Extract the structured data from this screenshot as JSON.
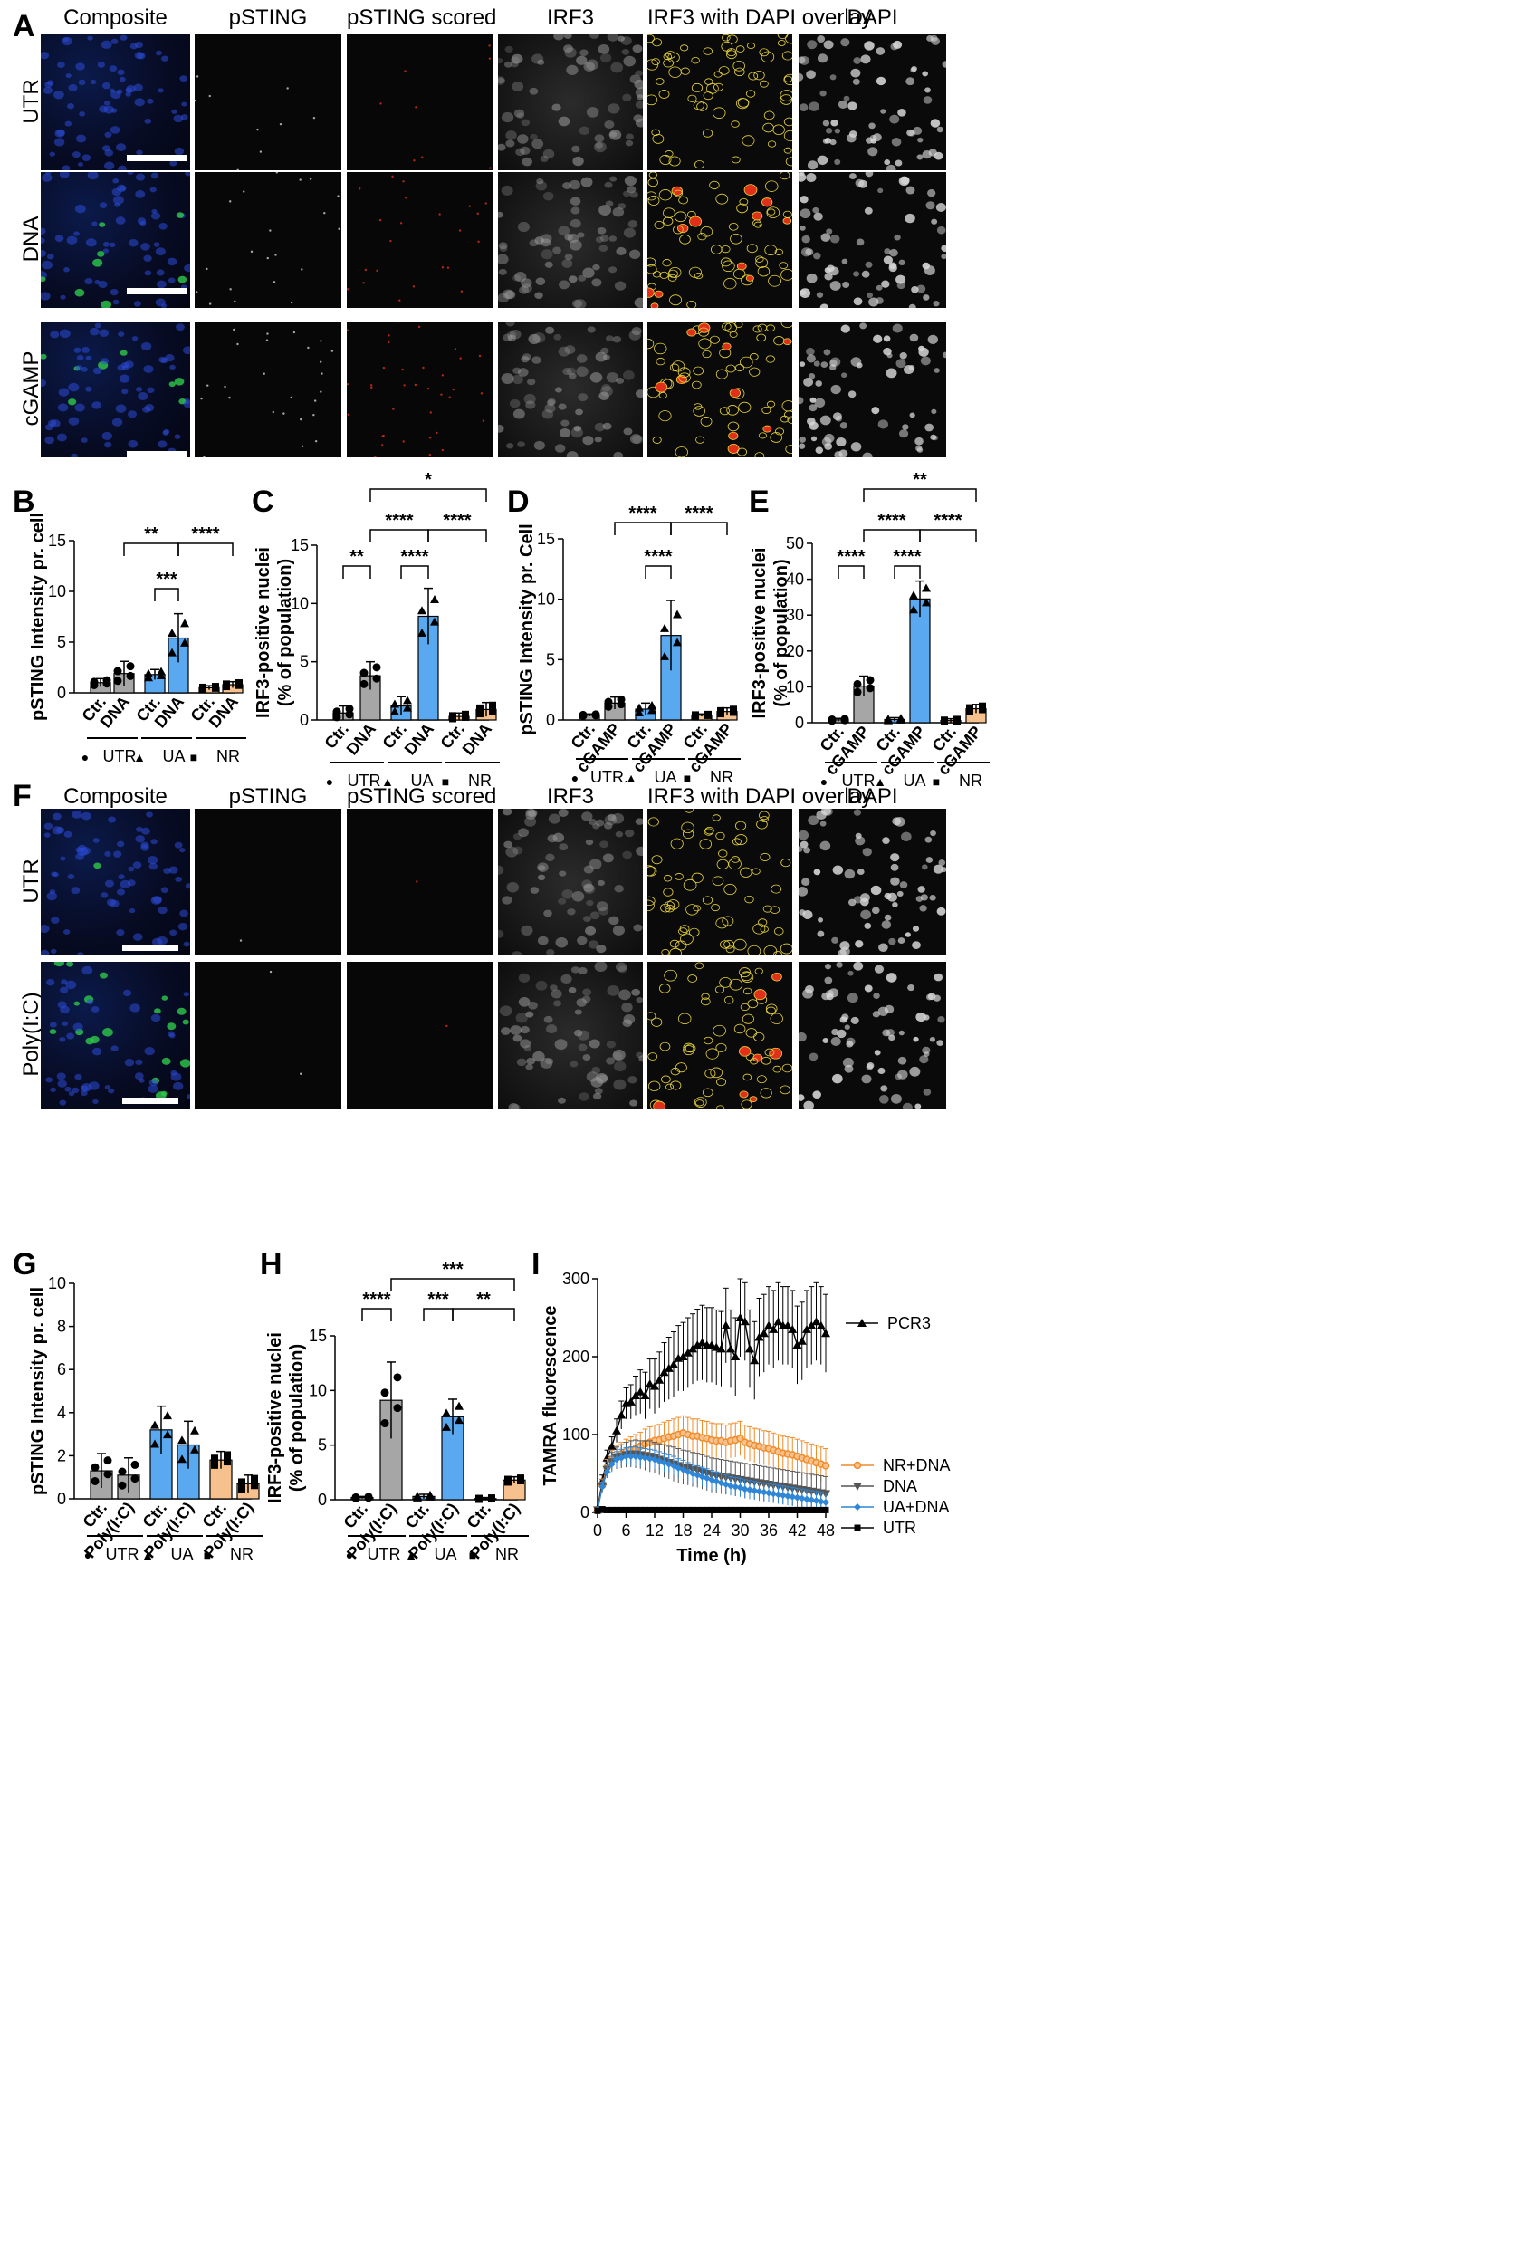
{
  "panel_labels": {
    "A": "A",
    "B": "B",
    "C": "C",
    "D": "D",
    "E": "E",
    "F": "F",
    "G": "G",
    "H": "H",
    "I": "I"
  },
  "panelA": {
    "columns": [
      "Composite",
      "pSTING",
      "pSTING scored",
      "IRF3",
      "IRF3 with DAPI overlay",
      "DAPI"
    ],
    "rows": [
      "UTR",
      "DNA",
      "cGAMP"
    ]
  },
  "panelF": {
    "columns": [
      "Composite",
      "pSTING",
      "pSTING scored",
      "IRF3",
      "IRF3 with DAPI overlay",
      "DAPI"
    ],
    "rows": [
      "UTR",
      "Poly(I:C)"
    ]
  },
  "colors": {
    "gray": "#a6a6a6",
    "blue": "#5aa9f0",
    "orange": "#f6c18c",
    "overlay_outline": "#e6d23a",
    "overlay_fill": "#e0301a",
    "nuclei_blue": "#2b4bd6",
    "nuclei_green": "#2ec94a"
  },
  "chart_data": [
    {
      "id": "B",
      "type": "bar",
      "ylabel": "pSTING Intensity pr. cell",
      "ylim": [
        0,
        15
      ],
      "yticks": [
        "0",
        "5",
        "10",
        "15"
      ],
      "categories": [
        "Ctr.",
        "DNA",
        "Ctr.",
        "DNA",
        "Ctr.",
        "DNA"
      ],
      "groups": [
        {
          "label": "UTR",
          "marker": "●"
        },
        {
          "label": "UA",
          "marker": "▲"
        },
        {
          "label": "NR",
          "marker": "■"
        }
      ],
      "values": [
        1.0,
        1.9,
        1.8,
        5.4,
        0.5,
        0.8
      ],
      "errors": [
        0.4,
        1.2,
        0.5,
        2.4,
        0.2,
        0.3
      ],
      "bar_colors": [
        "gray",
        "gray",
        "blue",
        "blue",
        "orange",
        "orange"
      ],
      "significance": [
        {
          "from": 2,
          "to": 3,
          "label": "***"
        },
        {
          "from": 1,
          "to": 3,
          "label": "**"
        },
        {
          "from": 3,
          "to": 5,
          "label": "****"
        }
      ]
    },
    {
      "id": "C",
      "type": "bar",
      "ylabel": "IRF3-positive nuclei\n(% of population)",
      "ylim": [
        0,
        15
      ],
      "yticks": [
        "0",
        "5",
        "10",
        "15"
      ],
      "categories": [
        "Ctr.",
        "DNA",
        "Ctr.",
        "DNA",
        "Ctr.",
        "DNA"
      ],
      "groups": [
        {
          "label": "UTR",
          "marker": "●"
        },
        {
          "label": "UA",
          "marker": "▲"
        },
        {
          "label": "NR",
          "marker": "■"
        }
      ],
      "values": [
        0.6,
        3.8,
        1.2,
        8.9,
        0.3,
        0.9
      ],
      "errors": [
        0.6,
        1.2,
        0.8,
        2.4,
        0.3,
        0.6
      ],
      "bar_colors": [
        "gray",
        "gray",
        "blue",
        "blue",
        "orange",
        "orange"
      ],
      "significance": [
        {
          "from": 0,
          "to": 1,
          "label": "**"
        },
        {
          "from": 2,
          "to": 3,
          "label": "****"
        },
        {
          "from": 1,
          "to": 3,
          "label": "****"
        },
        {
          "from": 3,
          "to": 5,
          "label": "****"
        },
        {
          "from": 1,
          "to": 5,
          "label": "*"
        }
      ]
    },
    {
      "id": "D",
      "type": "bar",
      "ylabel": "pSTING Intensity pr. Cell",
      "ylim": [
        0,
        15
      ],
      "yticks": [
        "0",
        "5",
        "10",
        "15"
      ],
      "categories": [
        "Ctr.",
        "cGAMP",
        "Ctr.",
        "cGAMP",
        "Ctr.",
        "cGAMP"
      ],
      "groups": [
        {
          "label": "UTR.",
          "marker": "●"
        },
        {
          "label": "UA",
          "marker": "▲"
        },
        {
          "label": "NR",
          "marker": "■"
        }
      ],
      "values": [
        0.4,
        1.4,
        0.9,
        7.0,
        0.4,
        0.7
      ],
      "errors": [
        0.1,
        0.5,
        0.5,
        2.9,
        0.1,
        0.3
      ],
      "bar_colors": [
        "gray",
        "gray",
        "blue",
        "blue",
        "orange",
        "orange"
      ],
      "significance": [
        {
          "from": 2,
          "to": 3,
          "label": "****"
        },
        {
          "from": 1,
          "to": 3,
          "label": "****"
        },
        {
          "from": 3,
          "to": 5,
          "label": "****"
        }
      ]
    },
    {
      "id": "E",
      "type": "bar",
      "ylabel": "IRF3-positive nuclei\n(% of population)",
      "ylim": [
        0,
        50
      ],
      "yticks": [
        "0",
        "10",
        "20",
        "30",
        "40",
        "50"
      ],
      "categories": [
        "Ctr.",
        "cGAMP",
        "Ctr.",
        "cGAMP",
        "Ctr.",
        "cGAMP"
      ],
      "groups": [
        {
          "label": "UTR",
          "marker": "●"
        },
        {
          "label": "UA",
          "marker": "▲"
        },
        {
          "label": "NR",
          "marker": "■"
        }
      ],
      "values": [
        0.8,
        10.2,
        0.9,
        34.5,
        0.6,
        3.9
      ],
      "errors": [
        0.4,
        2.8,
        0.5,
        5.0,
        0.5,
        1.2
      ],
      "bar_colors": [
        "gray",
        "gray",
        "blue",
        "blue",
        "orange",
        "orange"
      ],
      "significance": [
        {
          "from": 0,
          "to": 1,
          "label": "****"
        },
        {
          "from": 2,
          "to": 3,
          "label": "****"
        },
        {
          "from": 1,
          "to": 3,
          "label": "****"
        },
        {
          "from": 3,
          "to": 5,
          "label": "****"
        },
        {
          "from": 1,
          "to": 5,
          "label": "**"
        }
      ]
    },
    {
      "id": "G",
      "type": "bar",
      "ylabel": "pSTING Intensity pr. cell",
      "ylim": [
        0,
        10
      ],
      "yticks": [
        "0",
        "2",
        "4",
        "6",
        "8",
        "10"
      ],
      "categories": [
        "Ctr.",
        "Poly(I:C)",
        "Ctr.",
        "Poly(I:C)",
        "Ctr.",
        "Poly(I:C)"
      ],
      "groups": [
        {
          "label": "UTR",
          "marker": "●"
        },
        {
          "label": "UA",
          "marker": "▲"
        },
        {
          "label": "NR",
          "marker": "■"
        }
      ],
      "values": [
        1.3,
        1.1,
        3.2,
        2.5,
        1.8,
        0.7
      ],
      "errors": [
        0.8,
        0.8,
        1.1,
        1.1,
        0.4,
        0.4
      ],
      "bar_colors": [
        "gray",
        "gray",
        "blue",
        "blue",
        "orange",
        "orange"
      ],
      "significance": []
    },
    {
      "id": "H",
      "type": "bar",
      "ylabel": "IRF3-positive nuclei\n(% of population)",
      "ylim": [
        0,
        15
      ],
      "yticks": [
        "0",
        "5",
        "10",
        "15"
      ],
      "categories": [
        "Ctr.",
        "Poly(I:C)",
        "Ctr.",
        "Poly(I:C)",
        "Ctr.",
        "Poly(I:C)"
      ],
      "groups": [
        {
          "label": "UTR",
          "marker": "●"
        },
        {
          "label": "UA",
          "marker": "▲"
        },
        {
          "label": "NR",
          "marker": "■"
        }
      ],
      "values": [
        0.2,
        9.1,
        0.3,
        7.6,
        0.1,
        1.8
      ],
      "errors": [
        0.1,
        3.5,
        0.2,
        1.6,
        0.1,
        0.3
      ],
      "bar_colors": [
        "gray",
        "gray",
        "blue",
        "blue",
        "orange",
        "orange"
      ],
      "significance": [
        {
          "from": 0,
          "to": 1,
          "label": "****"
        },
        {
          "from": 2,
          "to": 3,
          "label": "***"
        },
        {
          "from": 3,
          "to": 5,
          "label": "**"
        },
        {
          "from": 1,
          "to": 5,
          "label": "***"
        }
      ]
    },
    {
      "id": "I",
      "type": "line",
      "xlabel": "Time (h)",
      "ylabel": "TAMRA fluorescence",
      "xlim": [
        0,
        48
      ],
      "ylim": [
        0,
        300
      ],
      "xticks": [
        "0",
        "6",
        "12",
        "18",
        "24",
        "30",
        "36",
        "42",
        "48"
      ],
      "yticks": [
        "0",
        "100",
        "200",
        "300"
      ],
      "x": [
        0,
        1,
        2,
        3,
        4,
        5,
        6,
        7,
        8,
        9,
        10,
        11,
        12,
        13,
        14,
        15,
        16,
        17,
        18,
        19,
        20,
        21,
        22,
        23,
        24,
        25,
        26,
        27,
        28,
        29,
        30,
        31,
        32,
        33,
        34,
        35,
        36,
        37,
        38,
        39,
        40,
        41,
        42,
        43,
        44,
        45,
        46,
        47,
        48
      ],
      "series": [
        {
          "name": "PCR3",
          "marker": "triangle-up",
          "color": "#000000",
          "values": [
            5,
            40,
            70,
            85,
            105,
            125,
            140,
            142,
            150,
            155,
            150,
            165,
            162,
            170,
            180,
            185,
            190,
            198,
            200,
            205,
            210,
            215,
            218,
            215,
            215,
            212,
            210,
            240,
            210,
            200,
            250,
            245,
            210,
            195,
            225,
            230,
            240,
            235,
            245,
            240,
            240,
            235,
            215,
            220,
            235,
            240,
            245,
            240,
            230
          ],
          "errors": [
            2,
            8,
            10,
            12,
            15,
            18,
            20,
            22,
            25,
            28,
            30,
            32,
            35,
            36,
            38,
            40,
            42,
            42,
            44,
            45,
            45,
            46,
            48,
            48,
            48,
            48,
            48,
            48,
            50,
            50,
            50,
            50,
            50,
            50,
            50,
            50,
            50,
            50,
            50,
            50,
            50,
            50,
            50,
            50,
            50,
            50,
            50,
            50,
            50
          ]
        },
        {
          "name": "NR+DNA",
          "marker": "circle",
          "color": "#f08c2a",
          "values": [
            3,
            35,
            58,
            68,
            72,
            75,
            78,
            80,
            82,
            85,
            88,
            90,
            92,
            93,
            95,
            97,
            98,
            100,
            102,
            100,
            98,
            98,
            96,
            95,
            93,
            92,
            92,
            90,
            92,
            93,
            95,
            90,
            88,
            86,
            85,
            83,
            82,
            80,
            78,
            76,
            75,
            74,
            72,
            70,
            68,
            66,
            64,
            62,
            60
          ],
          "errors": [
            1,
            8,
            10,
            12,
            14,
            15,
            16,
            17,
            18,
            18,
            19,
            20,
            20,
            20,
            21,
            21,
            22,
            22,
            22,
            22,
            22,
            22,
            22,
            22,
            22,
            22,
            22,
            22,
            22,
            22,
            22,
            22,
            22,
            22,
            22,
            22,
            22,
            22,
            22,
            22,
            22,
            22,
            22,
            22,
            22,
            22,
            22,
            22,
            22
          ]
        },
        {
          "name": "DNA",
          "marker": "triangle-down",
          "color": "#555555",
          "values": [
            3,
            34,
            55,
            65,
            70,
            72,
            74,
            75,
            75,
            74,
            73,
            72,
            70,
            68,
            66,
            64,
            62,
            60,
            58,
            57,
            55,
            54,
            52,
            50,
            48,
            47,
            46,
            45,
            44,
            43,
            42,
            41,
            40,
            39,
            38,
            37,
            36,
            35,
            34,
            33,
            32,
            31,
            30,
            29,
            28,
            27,
            26,
            25,
            24
          ],
          "errors": [
            1,
            8,
            10,
            12,
            14,
            15,
            16,
            17,
            18,
            18,
            19,
            20,
            20,
            20,
            21,
            21,
            22,
            22,
            22,
            22,
            22,
            22,
            22,
            22,
            22,
            22,
            22,
            22,
            22,
            22,
            22,
            22,
            22,
            22,
            22,
            22,
            22,
            22,
            22,
            22,
            22,
            22,
            22,
            22,
            22,
            22,
            22,
            22,
            22
          ]
        },
        {
          "name": "UA+DNA",
          "marker": "diamond",
          "color": "#2f86d6",
          "values": [
            3,
            33,
            52,
            62,
            68,
            70,
            72,
            72,
            72,
            71,
            70,
            69,
            68,
            66,
            64,
            62,
            60,
            57,
            55,
            52,
            50,
            48,
            46,
            44,
            42,
            40,
            38,
            36,
            34,
            33,
            32,
            30,
            29,
            28,
            27,
            26,
            25,
            24,
            23,
            22,
            21,
            20,
            19,
            18,
            17,
            16,
            15,
            14,
            13
          ],
          "errors": [
            1,
            6,
            8,
            10,
            10,
            11,
            11,
            12,
            12,
            12,
            12,
            12,
            12,
            12,
            12,
            12,
            12,
            12,
            12,
            12,
            12,
            12,
            12,
            12,
            12,
            12,
            12,
            12,
            12,
            12,
            12,
            12,
            12,
            12,
            12,
            12,
            12,
            12,
            12,
            12,
            12,
            12,
            12,
            12,
            12,
            12,
            12,
            12,
            12
          ]
        },
        {
          "name": "UTR",
          "marker": "square",
          "color": "#000000",
          "values": [
            2,
            4,
            3,
            3,
            3,
            3,
            3,
            3,
            3,
            3,
            3,
            3,
            3,
            3,
            3,
            3,
            3,
            3,
            3,
            3,
            3,
            3,
            3,
            3,
            3,
            3,
            3,
            3,
            3,
            3,
            3,
            3,
            3,
            3,
            3,
            3,
            3,
            3,
            3,
            3,
            3,
            3,
            3,
            3,
            3,
            3,
            3,
            3,
            3
          ],
          "errors": [
            1,
            1,
            1,
            1,
            1,
            1,
            1,
            1,
            1,
            1,
            1,
            1,
            1,
            1,
            1,
            1,
            1,
            1,
            1,
            1,
            1,
            1,
            1,
            1,
            1,
            1,
            1,
            1,
            1,
            1,
            1,
            1,
            1,
            1,
            1,
            1,
            1,
            1,
            1,
            1,
            1,
            1,
            1,
            1,
            1,
            1,
            1,
            1,
            1
          ]
        }
      ]
    }
  ]
}
